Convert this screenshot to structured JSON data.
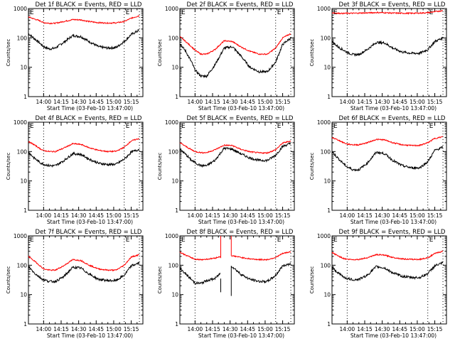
{
  "chart_data": [
    {
      "type": "line",
      "title": "Det 1f BLACK = Events, RED = LLD",
      "xlabel": "Start Time (03-Feb-10 13:47:00)",
      "ylabel": "Counts/sec",
      "yscale": "log",
      "ylim": [
        1,
        1000
      ],
      "ytick_labels": [
        "1",
        "10",
        "100",
        "1000"
      ],
      "xlim_minutes_after_start": [
        0,
        98
      ],
      "xtick_labels": [
        "14:00",
        "14:15",
        "14:30",
        "14:45",
        "15:00",
        "15:15"
      ],
      "xtick_minutes": [
        13,
        28,
        43,
        58,
        73,
        88
      ],
      "vertical_markers_minutes": [
        13,
        82,
        95
      ],
      "markers_label": [
        "E",
        "E"
      ],
      "series": [
        {
          "name": "Events",
          "color": "#000000",
          "x": [
            0,
            5,
            10,
            13,
            18,
            23,
            30,
            38,
            45,
            52,
            60,
            68,
            75,
            82,
            88,
            95
          ],
          "y": [
            140,
            95,
            65,
            50,
            42,
            45,
            70,
            120,
            110,
            75,
            50,
            45,
            47,
            75,
            130,
            185
          ]
        },
        {
          "name": "LLD",
          "color": "#ff0000",
          "x": [
            0,
            5,
            10,
            13,
            18,
            23,
            30,
            38,
            45,
            52,
            60,
            68,
            75,
            82,
            88,
            95
          ],
          "y": [
            520,
            440,
            380,
            330,
            315,
            315,
            360,
            420,
            410,
            360,
            330,
            320,
            325,
            360,
            470,
            570
          ]
        }
      ]
    },
    {
      "type": "line",
      "title": "Det 2f BLACK = Events, RED = LLD",
      "xlabel": "Start Time (03-Feb-10 13:47:00)",
      "ylabel": "Counts/sec",
      "yscale": "log",
      "ylim": [
        1,
        1000
      ],
      "ytick_labels": [
        "1",
        "10",
        "100",
        "1000"
      ],
      "xlim_minutes_after_start": [
        0,
        98
      ],
      "xtick_labels": [
        "14:00",
        "14:15",
        "14:30",
        "14:45",
        "15:00",
        "15:15"
      ],
      "xtick_minutes": [
        13,
        28,
        43,
        58,
        73,
        88
      ],
      "vertical_markers_minutes": [
        13,
        82,
        95
      ],
      "markers_label": [
        "E",
        "E"
      ],
      "series": [
        {
          "name": "Events",
          "color": "#000000",
          "x": [
            0,
            5,
            10,
            13,
            18,
            23,
            30,
            38,
            45,
            52,
            60,
            68,
            75,
            82,
            88,
            95
          ],
          "y": [
            65,
            35,
            15,
            8,
            5,
            5,
            12,
            45,
            50,
            25,
            10,
            7,
            7,
            15,
            60,
            100
          ]
        },
        {
          "name": "LLD",
          "color": "#ff0000",
          "x": [
            0,
            5,
            10,
            13,
            18,
            23,
            30,
            38,
            45,
            52,
            60,
            68,
            75,
            82,
            88,
            95
          ],
          "y": [
            110,
            75,
            50,
            38,
            28,
            28,
            40,
            80,
            75,
            50,
            35,
            28,
            28,
            45,
            100,
            140
          ]
        }
      ]
    },
    {
      "type": "line",
      "title": "Det 3f BLACK = Events, RED = LLD",
      "xlabel": "Start Time (03-Feb-10 13:47:00)",
      "ylabel": "Counts/sec",
      "yscale": "log",
      "ylim": [
        1,
        1000
      ],
      "ytick_labels": [
        "1",
        "10",
        "100",
        "1000"
      ],
      "xlim_minutes_after_start": [
        0,
        98
      ],
      "xtick_labels": [
        "14:00",
        "14:15",
        "14:30",
        "14:45",
        "15:00",
        "15:15"
      ],
      "xtick_minutes": [
        13,
        28,
        43,
        58,
        73,
        88
      ],
      "vertical_markers_minutes": [
        13,
        82,
        95
      ],
      "markers_label": [
        "E",
        "E"
      ],
      "series": [
        {
          "name": "Events",
          "color": "#000000",
          "x": [
            0,
            5,
            10,
            13,
            18,
            23,
            30,
            38,
            45,
            52,
            60,
            68,
            75,
            82,
            88,
            95
          ],
          "y": [
            75,
            50,
            38,
            32,
            27,
            27,
            40,
            70,
            68,
            45,
            33,
            30,
            30,
            40,
            75,
            100
          ]
        },
        {
          "name": "LLD",
          "color": "#ff0000",
          "x": [
            0,
            5,
            10,
            13,
            18,
            23,
            30,
            38,
            45,
            52,
            60,
            68,
            75,
            82,
            88,
            95
          ],
          "y": [
            720,
            690,
            680,
            690,
            690,
            700,
            710,
            730,
            720,
            700,
            690,
            690,
            700,
            720,
            780,
            850
          ]
        }
      ]
    },
    {
      "type": "line",
      "title": "Det 4f BLACK = Events, RED = LLD",
      "xlabel": "Start Time (03-Feb-10 13:47:00)",
      "ylabel": "Counts/sec",
      "yscale": "log",
      "ylim": [
        1,
        1000
      ],
      "ytick_labels": [
        "1",
        "10",
        "100",
        "1000"
      ],
      "xlim_minutes_after_start": [
        0,
        98
      ],
      "xtick_labels": [
        "14:00",
        "14:15",
        "14:30",
        "14:45",
        "15:00",
        "15:15"
      ],
      "xtick_minutes": [
        13,
        28,
        43,
        58,
        73,
        88
      ],
      "vertical_markers_minutes": [
        13,
        82,
        95
      ],
      "markers_label": [
        "E",
        "E"
      ],
      "series": [
        {
          "name": "Events",
          "color": "#000000",
          "x": [
            0,
            5,
            10,
            13,
            18,
            23,
            30,
            38,
            45,
            52,
            60,
            68,
            75,
            82,
            88,
            95
          ],
          "y": [
            95,
            60,
            42,
            37,
            33,
            33,
            48,
            85,
            80,
            55,
            40,
            36,
            37,
            55,
            95,
            120
          ]
        },
        {
          "name": "LLD",
          "color": "#ff0000",
          "x": [
            0,
            5,
            10,
            13,
            18,
            23,
            30,
            38,
            45,
            52,
            60,
            68,
            75,
            82,
            88,
            95
          ],
          "y": [
            220,
            170,
            125,
            108,
            100,
            100,
            130,
            185,
            175,
            135,
            110,
            100,
            102,
            140,
            230,
            280
          ]
        }
      ]
    },
    {
      "type": "line",
      "title": "Det 5f BLACK = Events, RED = LLD",
      "xlabel": "Start Time (03-Feb-10 13:47:00)",
      "ylabel": "Counts/sec",
      "yscale": "log",
      "ylim": [
        1,
        1000
      ],
      "ytick_labels": [
        "1",
        "10",
        "100",
        "1000"
      ],
      "xlim_minutes_after_start": [
        0,
        98
      ],
      "xtick_labels": [
        "14:00",
        "14:15",
        "14:30",
        "14:45",
        "15:00",
        "15:15"
      ],
      "xtick_minutes": [
        13,
        28,
        43,
        58,
        73,
        88
      ],
      "vertical_markers_minutes": [
        13,
        82,
        95
      ],
      "markers_label": [
        "E",
        "E"
      ],
      "series": [
        {
          "name": "Events",
          "color": "#000000",
          "x": [
            0,
            5,
            10,
            13,
            18,
            23,
            30,
            38,
            45,
            52,
            60,
            68,
            75,
            82,
            88,
            95
          ],
          "y": [
            120,
            80,
            50,
            42,
            33,
            33,
            50,
            130,
            120,
            85,
            60,
            50,
            50,
            75,
            150,
            190
          ]
        },
        {
          "name": "LLD",
          "color": "#ff0000",
          "x": [
            0,
            5,
            10,
            13,
            18,
            23,
            30,
            38,
            45,
            52,
            60,
            68,
            75,
            82,
            88,
            95
          ],
          "y": [
            200,
            150,
            115,
            100,
            92,
            92,
            115,
            165,
            160,
            120,
            98,
            90,
            90,
            115,
            195,
            230
          ]
        }
      ]
    },
    {
      "type": "line",
      "title": "Det 6f BLACK = Events, RED = LLD",
      "xlabel": "Start Time (03-Feb-10 13:47:00)",
      "ylabel": "Counts/sec",
      "yscale": "log",
      "ylim": [
        1,
        1000
      ],
      "ytick_labels": [
        "1",
        "10",
        "100",
        "1000"
      ],
      "xlim_minutes_after_start": [
        0,
        98
      ],
      "xtick_labels": [
        "14:00",
        "14:15",
        "14:30",
        "14:45",
        "15:00",
        "15:15"
      ],
      "xtick_minutes": [
        13,
        28,
        43,
        58,
        73,
        88
      ],
      "vertical_markers_minutes": [
        13,
        82,
        95
      ],
      "markers_label": [
        "E",
        "E"
      ],
      "series": [
        {
          "name": "Events",
          "color": "#000000",
          "x": [
            0,
            5,
            10,
            13,
            18,
            23,
            30,
            38,
            45,
            52,
            60,
            68,
            75,
            82,
            88,
            95
          ],
          "y": [
            100,
            60,
            38,
            30,
            24,
            24,
            40,
            95,
            85,
            50,
            33,
            28,
            28,
            45,
            110,
            140
          ]
        },
        {
          "name": "LLD",
          "color": "#ff0000",
          "x": [
            0,
            5,
            10,
            13,
            18,
            23,
            30,
            38,
            45,
            52,
            60,
            68,
            75,
            82,
            88,
            95
          ],
          "y": [
            300,
            250,
            200,
            180,
            170,
            170,
            200,
            260,
            250,
            200,
            170,
            160,
            162,
            200,
            280,
            320
          ]
        }
      ]
    },
    {
      "type": "line",
      "title": "Det 7f BLACK = Events, RED = LLD",
      "xlabel": "Start Time (03-Feb-10 13:47:00)",
      "ylabel": "Counts/sec",
      "yscale": "log",
      "ylim": [
        1,
        1000
      ],
      "ytick_labels": [
        "1",
        "10",
        "100",
        "1000"
      ],
      "xlim_minutes_after_start": [
        0,
        98
      ],
      "xtick_labels": [
        "14:00",
        "14:15",
        "14:30",
        "14:45",
        "15:00",
        "15:15"
      ],
      "xtick_minutes": [
        13,
        28,
        43,
        58,
        73,
        88
      ],
      "vertical_markers_minutes": [
        13,
        82,
        95
      ],
      "markers_label": [
        "E",
        "E"
      ],
      "series": [
        {
          "name": "Events",
          "color": "#000000",
          "x": [
            0,
            5,
            10,
            13,
            18,
            23,
            30,
            38,
            45,
            52,
            60,
            68,
            75,
            82,
            88,
            95
          ],
          "y": [
            90,
            55,
            38,
            32,
            28,
            28,
            40,
            85,
            80,
            50,
            33,
            30,
            30,
            45,
            95,
            120
          ]
        },
        {
          "name": "LLD",
          "color": "#ff0000",
          "x": [
            0,
            5,
            10,
            13,
            18,
            23,
            30,
            38,
            45,
            52,
            60,
            68,
            75,
            82,
            88,
            95
          ],
          "y": [
            200,
            140,
            95,
            75,
            68,
            68,
            95,
            155,
            145,
            100,
            75,
            68,
            68,
            100,
            190,
            230
          ]
        }
      ]
    },
    {
      "type": "line",
      "title": "Det 8f BLACK = Events, RED = LLD",
      "xlabel": "Start Time (03-Feb-10 13:47:00)",
      "ylabel": "Counts/sec",
      "yscale": "log",
      "ylim": [
        1,
        1000
      ],
      "ytick_labels": [
        "1",
        "10",
        "100",
        "1000"
      ],
      "xlim_minutes_after_start": [
        0,
        98
      ],
      "xtick_labels": [
        "14:00",
        "14:15",
        "14:30",
        "14:45",
        "15:00",
        "15:15"
      ],
      "xtick_minutes": [
        13,
        28,
        43,
        58,
        73,
        88
      ],
      "vertical_markers_minutes": [
        13,
        82,
        95
      ],
      "markers_label": [
        "E",
        "E"
      ],
      "data_gap_minutes": [
        35,
        44
      ],
      "series": [
        {
          "name": "Events",
          "color": "#000000",
          "x": [
            0,
            5,
            10,
            13,
            18,
            23,
            30,
            35,
            35.1,
            44,
            44.1,
            48,
            52,
            60,
            68,
            75,
            82,
            88,
            95
          ],
          "y": [
            80,
            50,
            32,
            25,
            24,
            30,
            35,
            55,
            12,
            9,
            95,
            70,
            50,
            33,
            28,
            28,
            45,
            95,
            115
          ]
        },
        {
          "name": "LLD",
          "color": "#ff0000",
          "x": [
            0,
            5,
            10,
            13,
            18,
            23,
            30,
            35,
            35.1,
            44,
            44.1,
            48,
            52,
            60,
            68,
            75,
            82,
            88,
            95
          ],
          "y": [
            280,
            220,
            180,
            160,
            155,
            160,
            175,
            200,
            1000,
            1000,
            210,
            200,
            185,
            165,
            155,
            155,
            185,
            250,
            290
          ]
        }
      ]
    },
    {
      "type": "line",
      "title": "Det 9f BLACK = Events, RED = LLD",
      "xlabel": "Start Time (03-Feb-10 13:47:00)",
      "ylabel": "Counts/sec",
      "yscale": "log",
      "ylim": [
        1,
        1000
      ],
      "ytick_labels": [
        "1",
        "10",
        "100",
        "1000"
      ],
      "xlim_minutes_after_start": [
        0,
        98
      ],
      "xtick_labels": [
        "14:00",
        "14:15",
        "14:30",
        "14:45",
        "15:00",
        "15:15"
      ],
      "xtick_minutes": [
        13,
        28,
        43,
        58,
        73,
        88
      ],
      "vertical_markers_minutes": [
        13,
        82,
        95
      ],
      "markers_label": [
        "E",
        "E"
      ],
      "series": [
        {
          "name": "Events",
          "color": "#000000",
          "x": [
            0,
            5,
            10,
            13,
            18,
            23,
            30,
            38,
            45,
            52,
            60,
            68,
            75,
            82,
            88,
            95
          ],
          "y": [
            85,
            55,
            40,
            35,
            32,
            33,
            45,
            90,
            80,
            55,
            42,
            38,
            38,
            52,
            95,
            120
          ]
        },
        {
          "name": "LLD",
          "color": "#ff0000",
          "x": [
            0,
            5,
            10,
            13,
            18,
            23,
            30,
            38,
            45,
            52,
            60,
            68,
            75,
            82,
            88,
            95
          ],
          "y": [
            270,
            210,
            170,
            160,
            155,
            158,
            180,
            230,
            220,
            185,
            165,
            158,
            158,
            180,
            250,
            300
          ]
        }
      ]
    }
  ]
}
